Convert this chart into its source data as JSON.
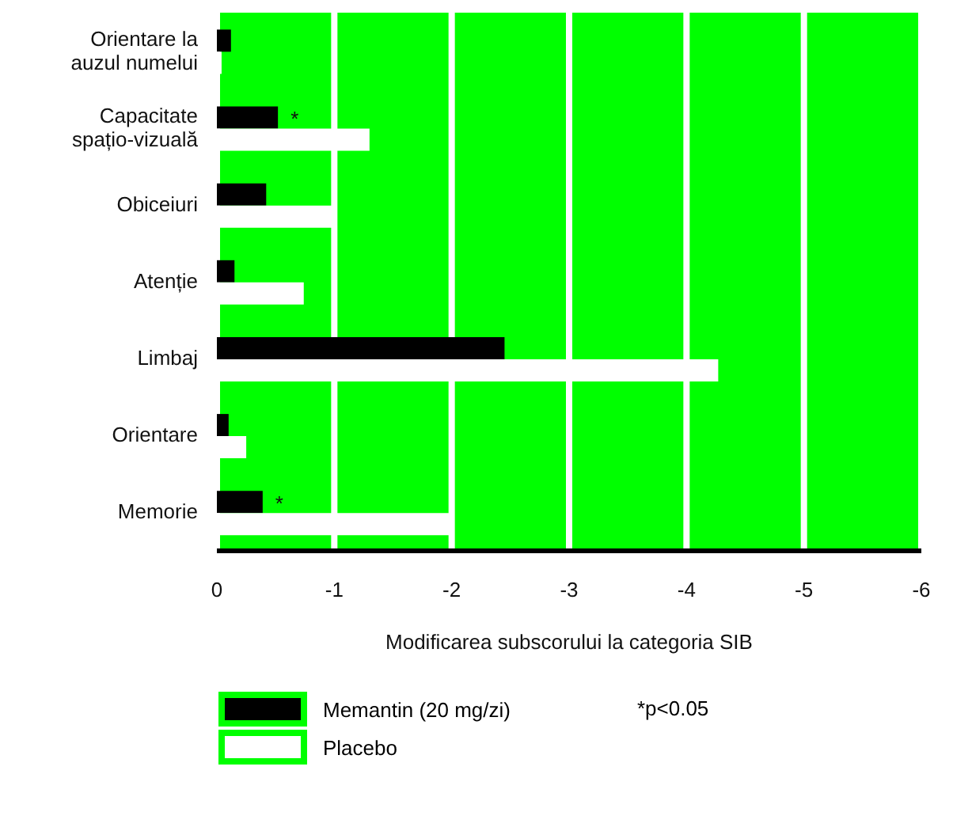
{
  "chart_data": {
    "type": "bar",
    "orientation": "horizontal",
    "categories": [
      "Orientare la\nauzul numelui",
      "Capacitate\nspațio-vizuală",
      "Obiceiuri",
      "Atenție",
      "Limbaj",
      "Orientare",
      "Memorie"
    ],
    "series": [
      {
        "name": "Memantin (20 mg/zi)",
        "color": "#000000",
        "values": [
          -0.12,
          -0.52,
          -0.42,
          -0.15,
          -2.45,
          -0.1,
          -0.39
        ]
      },
      {
        "name": "Placebo",
        "color": "#ffffff",
        "values": [
          -0.04,
          -1.3,
          -1.0,
          -0.74,
          -4.27,
          -0.25,
          -2.0
        ]
      }
    ],
    "xlim": [
      0,
      -6
    ],
    "xticks": [
      0,
      -1,
      -2,
      -3,
      -4,
      -5,
      -6
    ],
    "xlabel": "Modificarea subscorului la categoria SIB",
    "grid": "x",
    "legend": "bottom",
    "annotations": [
      {
        "text": "*",
        "x": -0.52,
        "y": "Capacitate\nspațio-vizuală"
      },
      {
        "text": "*",
        "x": -0.39,
        "y": "Memorie"
      },
      "*p<0.05"
    ]
  }
}
